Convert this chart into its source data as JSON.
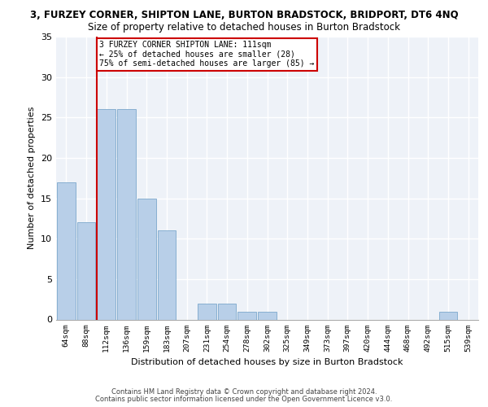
{
  "title_line1": "3, FURZEY CORNER, SHIPTON LANE, BURTON BRADSTOCK, BRIDPORT, DT6 4NQ",
  "title_line2": "Size of property relative to detached houses in Burton Bradstock",
  "xlabel": "Distribution of detached houses by size in Burton Bradstock",
  "ylabel": "Number of detached properties",
  "footer_line1": "Contains HM Land Registry data © Crown copyright and database right 2024.",
  "footer_line2": "Contains public sector information licensed under the Open Government Licence v3.0.",
  "bar_labels": [
    "64sqm",
    "88sqm",
    "112sqm",
    "136sqm",
    "159sqm",
    "183sqm",
    "207sqm",
    "231sqm",
    "254sqm",
    "278sqm",
    "302sqm",
    "325sqm",
    "349sqm",
    "373sqm",
    "397sqm",
    "420sqm",
    "444sqm",
    "468sqm",
    "492sqm",
    "515sqm",
    "539sqm"
  ],
  "bar_values": [
    17,
    12,
    26,
    26,
    15,
    11,
    0,
    2,
    2,
    1,
    1,
    0,
    0,
    0,
    0,
    0,
    0,
    0,
    0,
    1,
    0
  ],
  "bar_color": "#b8cfe8",
  "bar_edge_color": "#7ba7cc",
  "background_color": "#eef2f8",
  "grid_color": "#ffffff",
  "annotation_line1": "3 FURZEY CORNER SHIPTON LANE: 111sqm",
  "annotation_line2": "← 25% of detached houses are smaller (28)",
  "annotation_line3": "75% of semi-detached houses are larger (85) →",
  "annotation_box_color": "#ffffff",
  "annotation_box_edge": "#cc0000",
  "vline_x_index": 2,
  "vline_color": "#cc0000",
  "ylim": [
    0,
    35
  ],
  "yticks": [
    0,
    5,
    10,
    15,
    20,
    25,
    30,
    35
  ]
}
